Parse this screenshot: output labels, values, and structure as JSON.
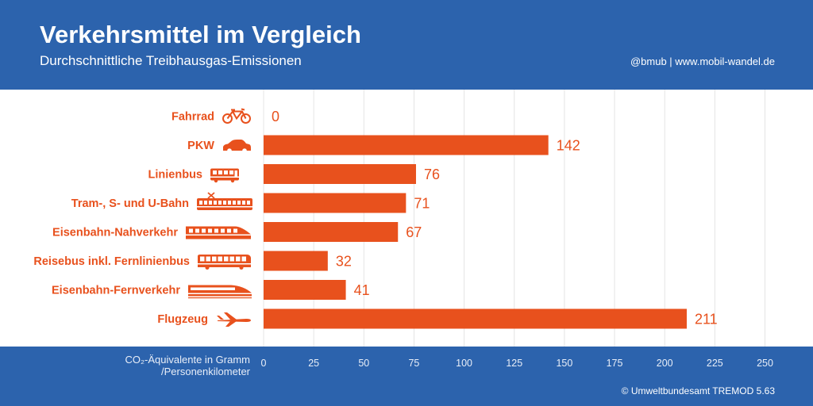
{
  "header": {
    "title": "Verkehrsmittel im Vergleich",
    "subtitle": "Durchschnittliche Treibhausgas-Emissionen",
    "source": "@bmub | www.mobil-wandel.de"
  },
  "footer": {
    "copyright": "© Umweltbundesamt TREMOD 5.63"
  },
  "colors": {
    "band": "#2c63ad",
    "bar": "#e8511d",
    "grid": "#e4e4e4"
  },
  "chart_data": {
    "type": "bar",
    "orientation": "horizontal",
    "title": "Verkehrsmittel im Vergleich",
    "subtitle": "Durchschnittliche Treibhausgas-Emissionen",
    "xlabel_line1": "CO₂-Äquivalente in Gramm",
    "xlabel_line2": "/Personenkilometer",
    "xlim": [
      0,
      250
    ],
    "ticks": [
      0,
      25,
      50,
      75,
      100,
      125,
      150,
      175,
      200,
      225,
      250
    ],
    "grid": true,
    "categories": [
      {
        "label": "Fahrrad",
        "icon": "bicycle-icon",
        "value": 0
      },
      {
        "label": "PKW",
        "icon": "car-icon",
        "value": 142
      },
      {
        "label": "Linienbus",
        "icon": "bus-icon",
        "value": 76
      },
      {
        "label": "Tram-, S- und U-Bahn",
        "icon": "tram-icon",
        "value": 71
      },
      {
        "label": "Eisenbahn-Nahverkehr",
        "icon": "regional-train-icon",
        "value": 67
      },
      {
        "label": "Reisebus inkl. Fernlinienbus",
        "icon": "coach-icon",
        "value": 32
      },
      {
        "label": "Eisenbahn-Fernverkehr",
        "icon": "high-speed-train-icon",
        "value": 41
      },
      {
        "label": "Flugzeug",
        "icon": "airplane-icon",
        "value": 211
      }
    ]
  }
}
